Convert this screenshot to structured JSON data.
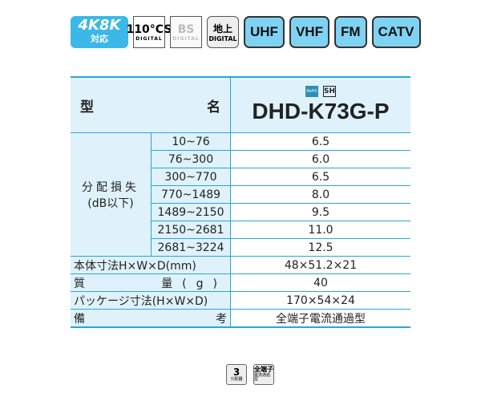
{
  "badges": {
    "k4k8k": "4K8K",
    "taiou": "対応",
    "cs": "110°CS",
    "cs_sub": "DIGITAL",
    "bs": "BS",
    "bs_sub": "DIGITAL",
    "chideji": "地上",
    "chideji_sub": "DIGITAL",
    "bands": [
      "UHF",
      "VHF",
      "FM",
      "CATV"
    ]
  },
  "table": {
    "model_label_left": "型",
    "model_label_right": "名",
    "model": "DHD-K73G-P",
    "rohs": "RoHS",
    "sh": "SH",
    "loss_label": "分配損失",
    "loss_unit": "(dB以下)",
    "loss_rows": [
      {
        "freq": "10~76",
        "value": "6.5"
      },
      {
        "freq": "76~300",
        "value": "6.0"
      },
      {
        "freq": "300~770",
        "value": "6.5"
      },
      {
        "freq": "770~1489",
        "value": "8.0"
      },
      {
        "freq": "1489~2150",
        "value": "9.5"
      },
      {
        "freq": "2150~2681",
        "value": "11.0"
      },
      {
        "freq": "2681~3224",
        "value": "12.5"
      }
    ],
    "size_label": "本体寸法H×W×D(mm)",
    "size": "48×51.2×21",
    "weight_label_left": "質",
    "weight_label_right": "量(g)",
    "weight": "40",
    "package_label": "パッケージ寸法(H×W×D)",
    "package": "170×54×24",
    "note_label_left": "備",
    "note_label_right": "考",
    "note": "全端子電流通過型"
  },
  "footer": {
    "split_num": "3",
    "split_text": "分配器",
    "all_term": "全端子",
    "all_term_sub": "電流通過型"
  }
}
